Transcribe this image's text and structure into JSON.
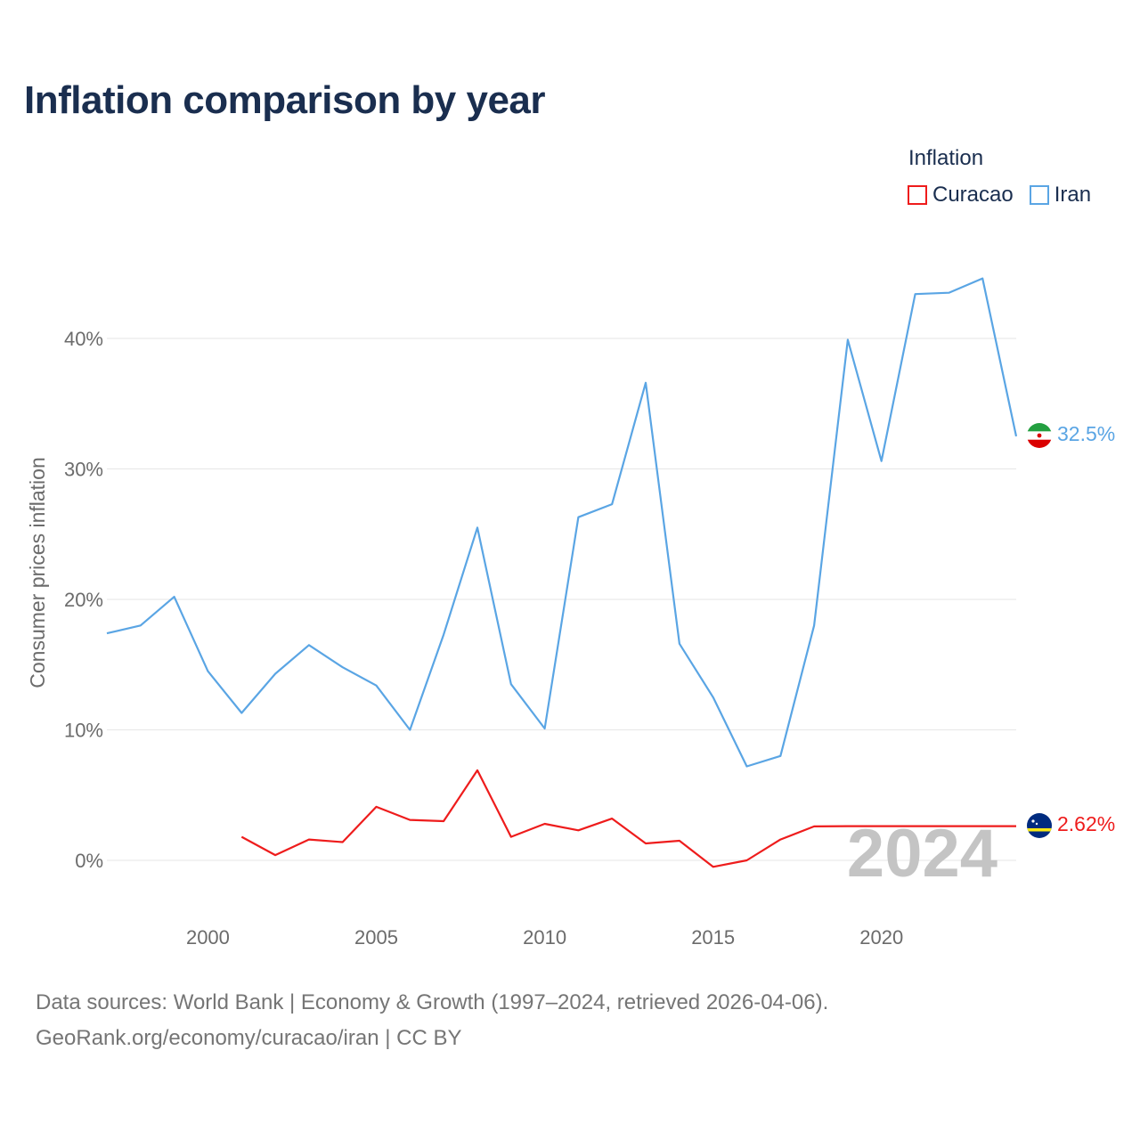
{
  "title": "Inflation comparison by year",
  "legend": {
    "title": "Inflation",
    "items": [
      {
        "label": "Curacao",
        "color": "#ee1c1c"
      },
      {
        "label": "Iran",
        "color": "#5aa5e4"
      }
    ]
  },
  "source": {
    "line1": "Data sources: World Bank | Economy & Growth (1997–2024, retrieved 2026-04-06).",
    "line2": "GeoRank.org/economy/curacao/iran | CC BY"
  },
  "chart_data": {
    "type": "line",
    "title": "Inflation comparison by year",
    "xlabel": "",
    "ylabel": "Consumer prices inflation",
    "xlim": [
      1997,
      2024
    ],
    "ylim": [
      -3,
      46
    ],
    "x_ticks": [
      2000,
      2005,
      2010,
      2015,
      2020
    ],
    "x_tick_labels": [
      "2000",
      "2005",
      "2010",
      "2015",
      "2020"
    ],
    "y_ticks": [
      0,
      10,
      20,
      30,
      40
    ],
    "y_tick_labels": [
      "0%",
      "10%",
      "20%",
      "30%",
      "40%"
    ],
    "grid": true,
    "year_marker": "2024",
    "series": [
      {
        "name": "Iran",
        "color": "#5aa5e4",
        "end_label": "32.5%",
        "icon": "iran-flag-icon",
        "points": [
          [
            1997,
            17.4
          ],
          [
            1998,
            18.0
          ],
          [
            1999,
            20.2
          ],
          [
            2000,
            14.5
          ],
          [
            2001,
            11.3
          ],
          [
            2002,
            14.3
          ],
          [
            2003,
            16.5
          ],
          [
            2004,
            14.8
          ],
          [
            2005,
            13.4
          ],
          [
            2006,
            10.0
          ],
          [
            2007,
            17.3
          ],
          [
            2008,
            25.5
          ],
          [
            2009,
            13.5
          ],
          [
            2010,
            10.1
          ],
          [
            2011,
            26.3
          ],
          [
            2012,
            27.3
          ],
          [
            2013,
            36.6
          ],
          [
            2014,
            16.6
          ],
          [
            2015,
            12.5
          ],
          [
            2016,
            7.2
          ],
          [
            2017,
            8.0
          ],
          [
            2018,
            18.0
          ],
          [
            2019,
            39.9
          ],
          [
            2020,
            30.6
          ],
          [
            2021,
            43.4
          ],
          [
            2022,
            43.5
          ],
          [
            2023,
            44.6
          ],
          [
            2024,
            32.5
          ]
        ]
      },
      {
        "name": "Curacao",
        "color": "#ee1c1c",
        "end_label": "2.62%",
        "icon": "curacao-flag-icon",
        "points": [
          [
            2001,
            1.8
          ],
          [
            2002,
            0.4
          ],
          [
            2003,
            1.6
          ],
          [
            2004,
            1.4
          ],
          [
            2005,
            4.1
          ],
          [
            2006,
            3.1
          ],
          [
            2007,
            3.0
          ],
          [
            2008,
            6.9
          ],
          [
            2009,
            1.8
          ],
          [
            2010,
            2.8
          ],
          [
            2011,
            2.3
          ],
          [
            2012,
            3.2
          ],
          [
            2013,
            1.3
          ],
          [
            2014,
            1.5
          ],
          [
            2015,
            -0.5
          ],
          [
            2016,
            0.0
          ],
          [
            2017,
            1.6
          ],
          [
            2018,
            2.6
          ],
          [
            2019,
            2.62
          ],
          [
            2024,
            2.62
          ]
        ]
      }
    ]
  }
}
